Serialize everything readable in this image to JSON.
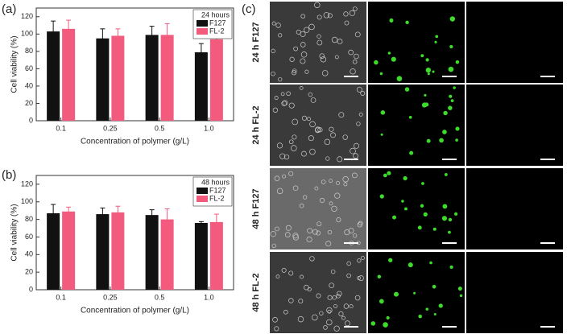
{
  "chart_data": [
    {
      "type": "bar",
      "panel_label": "(a)",
      "x_label": "Concentration of polymer (g/L)",
      "y_label": "Cell viability (%)",
      "legend_title": "24 hours",
      "legend": "upper right",
      "grid": false,
      "categories": [
        "0.1",
        "0.25",
        "0.5",
        "1.0"
      ],
      "series": [
        {
          "name": "F127",
          "color": "#111111",
          "values": [
            103,
            95,
            99,
            79
          ],
          "errors": [
            12,
            11,
            10,
            10
          ]
        },
        {
          "name": "FL-2",
          "color": "#f25a7e",
          "values": [
            106,
            98,
            99,
            94
          ],
          "errors": [
            10,
            8,
            13,
            13
          ]
        }
      ],
      "ylim": [
        0,
        130
      ],
      "yticks": [
        0,
        20,
        40,
        60,
        80,
        100,
        120
      ]
    },
    {
      "type": "bar",
      "panel_label": "(b)",
      "x_label": "Concentration of polymer (g/L)",
      "y_label": "Cell viability (%)",
      "legend_title": "48 hours",
      "legend": "upper right",
      "grid": false,
      "categories": [
        "0.1",
        "0.25",
        "0.5",
        "1.0"
      ],
      "series": [
        {
          "name": "F127",
          "color": "#111111",
          "values": [
            87,
            86,
            85,
            76
          ],
          "errors": [
            10,
            7,
            6,
            1.5
          ]
        },
        {
          "name": "FL-2",
          "color": "#f25a7e",
          "values": [
            89,
            88,
            80,
            77
          ],
          "errors": [
            5,
            7,
            12,
            9
          ]
        }
      ],
      "ylim": [
        0,
        130
      ],
      "yticks": [
        0,
        20,
        40,
        60,
        80,
        100,
        120
      ]
    }
  ],
  "image_panel": {
    "panel_label": "(c)",
    "rows": [
      "24 h F127",
      "24 h FL-2",
      "48 h F127",
      "48 h FL-2"
    ]
  }
}
